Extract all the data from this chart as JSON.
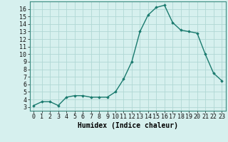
{
  "x": [
    0,
    1,
    2,
    3,
    4,
    5,
    6,
    7,
    8,
    9,
    10,
    11,
    12,
    13,
    14,
    15,
    16,
    17,
    18,
    19,
    20,
    21,
    22,
    23
  ],
  "y": [
    3.2,
    3.7,
    3.7,
    3.2,
    4.3,
    4.5,
    4.5,
    4.3,
    4.3,
    4.3,
    5.0,
    6.7,
    9.0,
    13.0,
    15.2,
    16.2,
    16.5,
    14.2,
    13.2,
    13.0,
    12.8,
    10.0,
    7.5,
    6.5
  ],
  "xlabel": "Humidex (Indice chaleur)",
  "xlim": [
    -0.5,
    23.5
  ],
  "ylim": [
    2.5,
    17.0
  ],
  "yticks": [
    3,
    4,
    5,
    6,
    7,
    8,
    9,
    10,
    11,
    12,
    13,
    14,
    15,
    16
  ],
  "xticks": [
    0,
    1,
    2,
    3,
    4,
    5,
    6,
    7,
    8,
    9,
    10,
    11,
    12,
    13,
    14,
    15,
    16,
    17,
    18,
    19,
    20,
    21,
    22,
    23
  ],
  "line_color": "#1a7a6e",
  "marker": "D",
  "marker_size": 1.8,
  "bg_color": "#d6f0ee",
  "grid_color": "#b0d8d4",
  "xlabel_fontsize": 7,
  "tick_fontsize": 6,
  "line_width": 1.0
}
